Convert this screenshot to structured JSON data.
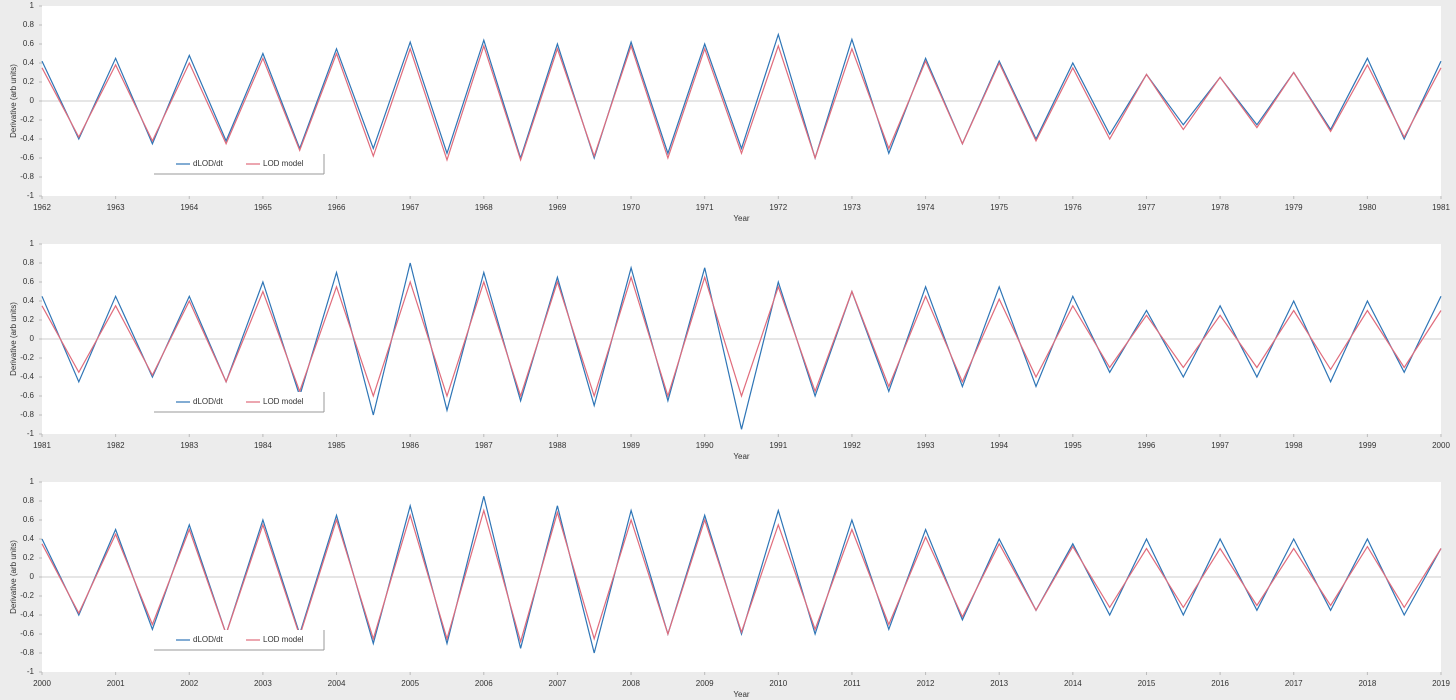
{
  "chart_data": [
    {
      "type": "line",
      "xlabel": "Year",
      "ylabel": "Derivative (arb units)",
      "legend": "lower left",
      "xlim": [
        1962,
        1981
      ],
      "xticks": [
        1962,
        1963,
        1964,
        1965,
        1966,
        1967,
        1968,
        1969,
        1970,
        1971,
        1972,
        1973,
        1974,
        1975,
        1976,
        1977,
        1978,
        1979,
        1980,
        1981
      ],
      "ylim": [
        -1,
        1
      ],
      "yticks": [
        -1,
        -0.8,
        -0.6,
        -0.4,
        -0.2,
        0,
        0.2,
        0.4,
        0.6,
        0.8,
        1
      ],
      "x": [
        1962,
        1962.5,
        1963,
        1963.5,
        1964,
        1964.5,
        1965,
        1965.5,
        1966,
        1966.5,
        1967,
        1967.5,
        1968,
        1968.5,
        1969,
        1969.5,
        1970,
        1970.5,
        1971,
        1971.5,
        1972,
        1972.5,
        1973,
        1973.5,
        1974,
        1974.5,
        1975,
        1975.5,
        1976,
        1976.5,
        1977,
        1977.5,
        1978,
        1978.5,
        1979,
        1979.5,
        1980,
        1980.5,
        1981
      ],
      "series": [
        {
          "name": "dLOD/dt",
          "color": "#2e75b6",
          "values": [
            0.42,
            -0.4,
            0.45,
            -0.45,
            0.48,
            -0.42,
            0.5,
            -0.5,
            0.55,
            -0.5,
            0.62,
            -0.55,
            0.64,
            -0.6,
            0.6,
            -0.6,
            0.62,
            -0.55,
            0.6,
            -0.5,
            0.7,
            -0.6,
            0.65,
            -0.55,
            0.45,
            -0.45,
            0.42,
            -0.4,
            0.4,
            -0.35,
            0.28,
            -0.25,
            0.25,
            -0.25,
            0.3,
            -0.3,
            0.45,
            -0.4,
            0.42
          ]
        },
        {
          "name": "LOD model",
          "color": "#e06c7c",
          "values": [
            0.35,
            -0.38,
            0.38,
            -0.42,
            0.4,
            -0.45,
            0.45,
            -0.52,
            0.5,
            -0.58,
            0.55,
            -0.62,
            0.58,
            -0.62,
            0.55,
            -0.58,
            0.58,
            -0.6,
            0.55,
            -0.55,
            0.58,
            -0.6,
            0.55,
            -0.5,
            0.42,
            -0.45,
            0.4,
            -0.42,
            0.35,
            -0.4,
            0.28,
            -0.3,
            0.25,
            -0.28,
            0.3,
            -0.32,
            0.38,
            -0.38,
            0.35
          ]
        }
      ]
    },
    {
      "type": "line",
      "xlabel": "Year",
      "ylabel": "Derivative (arb units)",
      "legend": "lower left",
      "xlim": [
        1981,
        2000
      ],
      "xticks": [
        1981,
        1982,
        1983,
        1984,
        1985,
        1986,
        1987,
        1988,
        1989,
        1990,
        1991,
        1992,
        1993,
        1994,
        1995,
        1996,
        1997,
        1998,
        1999,
        2000
      ],
      "ylim": [
        -1,
        1
      ],
      "yticks": [
        -1,
        -0.8,
        -0.6,
        -0.4,
        -0.2,
        0,
        0.2,
        0.4,
        0.6,
        0.8,
        1
      ],
      "x": [
        1981,
        1981.5,
        1982,
        1982.5,
        1983,
        1983.5,
        1984,
        1984.5,
        1985,
        1985.5,
        1986,
        1986.5,
        1987,
        1987.5,
        1988,
        1988.5,
        1989,
        1989.5,
        1990,
        1990.5,
        1991,
        1991.5,
        1992,
        1992.5,
        1993,
        1993.5,
        1994,
        1994.5,
        1995,
        1995.5,
        1996,
        1996.5,
        1997,
        1997.5,
        1998,
        1998.5,
        1999,
        1999.5,
        2000
      ],
      "series": [
        {
          "name": "dLOD/dt",
          "color": "#2e75b6",
          "values": [
            0.45,
            -0.45,
            0.45,
            -0.4,
            0.45,
            -0.45,
            0.6,
            -0.6,
            0.7,
            -0.8,
            0.8,
            -0.75,
            0.7,
            -0.65,
            0.65,
            -0.7,
            0.75,
            -0.65,
            0.75,
            -0.95,
            0.6,
            -0.6,
            0.5,
            -0.55,
            0.55,
            -0.5,
            0.55,
            -0.5,
            0.45,
            -0.35,
            0.3,
            -0.4,
            0.35,
            -0.4,
            0.4,
            -0.45,
            0.4,
            -0.35,
            0.45
          ]
        },
        {
          "name": "LOD model",
          "color": "#e06c7c",
          "values": [
            0.35,
            -0.35,
            0.35,
            -0.38,
            0.4,
            -0.45,
            0.5,
            -0.55,
            0.55,
            -0.6,
            0.6,
            -0.6,
            0.6,
            -0.6,
            0.6,
            -0.6,
            0.65,
            -0.6,
            0.65,
            -0.6,
            0.55,
            -0.55,
            0.5,
            -0.5,
            0.45,
            -0.45,
            0.42,
            -0.4,
            0.35,
            -0.3,
            0.25,
            -0.3,
            0.25,
            -0.3,
            0.3,
            -0.32,
            0.3,
            -0.3,
            0.3
          ]
        }
      ]
    },
    {
      "type": "line",
      "xlabel": "Year",
      "ylabel": "Derivative (arb units)",
      "legend": "lower left",
      "xlim": [
        2000,
        2019
      ],
      "xticks": [
        2000,
        2001,
        2002,
        2003,
        2004,
        2005,
        2006,
        2007,
        2008,
        2009,
        2010,
        2011,
        2012,
        2013,
        2014,
        2015,
        2016,
        2017,
        2018,
        2019
      ],
      "ylim": [
        -1,
        1
      ],
      "yticks": [
        -1,
        -0.8,
        -0.6,
        -0.4,
        -0.2,
        0,
        0.2,
        0.4,
        0.6,
        0.8,
        1
      ],
      "x": [
        2000,
        2000.5,
        2001,
        2001.5,
        2002,
        2002.5,
        2003,
        2003.5,
        2004,
        2004.5,
        2005,
        2005.5,
        2006,
        2006.5,
        2007,
        2007.5,
        2008,
        2008.5,
        2009,
        2009.5,
        2010,
        2010.5,
        2011,
        2011.5,
        2012,
        2012.5,
        2013,
        2013.5,
        2014,
        2014.5,
        2015,
        2015.5,
        2016,
        2016.5,
        2017,
        2017.5,
        2018,
        2018.5,
        2019
      ],
      "series": [
        {
          "name": "dLOD/dt",
          "color": "#2e75b6",
          "values": [
            0.4,
            -0.4,
            0.5,
            -0.55,
            0.55,
            -0.6,
            0.6,
            -0.6,
            0.65,
            -0.7,
            0.75,
            -0.7,
            0.85,
            -0.75,
            0.75,
            -0.8,
            0.7,
            -0.6,
            0.65,
            -0.6,
            0.7,
            -0.6,
            0.6,
            -0.55,
            0.5,
            -0.45,
            0.4,
            -0.35,
            0.35,
            -0.4,
            0.4,
            -0.4,
            0.4,
            -0.35,
            0.4,
            -0.35,
            0.4,
            -0.4,
            0.3
          ]
        },
        {
          "name": "LOD model",
          "color": "#e06c7c",
          "values": [
            0.35,
            -0.38,
            0.45,
            -0.5,
            0.5,
            -0.6,
            0.55,
            -0.62,
            0.6,
            -0.65,
            0.65,
            -0.65,
            0.7,
            -0.68,
            0.68,
            -0.65,
            0.6,
            -0.6,
            0.6,
            -0.58,
            0.55,
            -0.55,
            0.5,
            -0.5,
            0.42,
            -0.42,
            0.35,
            -0.35,
            0.32,
            -0.32,
            0.3,
            -0.32,
            0.3,
            -0.3,
            0.3,
            -0.3,
            0.32,
            -0.32,
            0.3
          ]
        }
      ]
    }
  ]
}
